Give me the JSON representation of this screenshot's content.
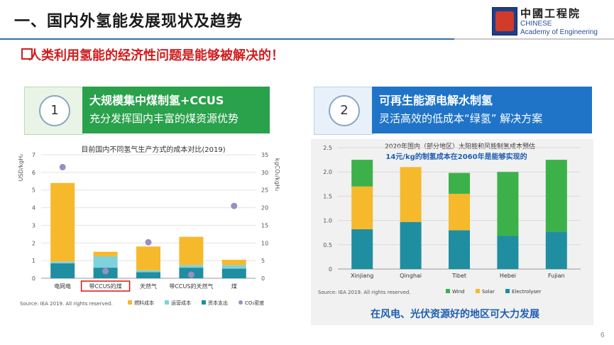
{
  "slide": {
    "title": "一、国内外氢能发展现状及趋势",
    "subtitle": "人类利用氢能的经济性问题是能够被解决的！",
    "page_number": "6"
  },
  "logo": {
    "cn": "中國工程院",
    "en_line1": "CHINESE",
    "en_line2": "Academy of Engineering"
  },
  "panel1": {
    "number": "1",
    "heading": "大规模集中煤制氢+CCUS",
    "subheading": "充分发挥国内丰富的煤资源优势"
  },
  "panel2": {
    "number": "2",
    "heading": "可再生能源电解水制氢",
    "subheading": "灵活高效的低成本“绿氢” 解决方案"
  },
  "caption": "在风电、光伏资源好的地区可大力发展",
  "chart_data": [
    {
      "type": "bar",
      "stacked": true,
      "title": "目前国内不同氢气生产方式的成本对比(2019)",
      "ylabel": "USD/kgH₂",
      "y2label": "kgCO₂/kgH₂",
      "ylim": [
        0,
        7
      ],
      "y2lim": [
        0,
        35
      ],
      "yticks": [
        "0",
        "1",
        "2",
        "3",
        "4",
        "5",
        "6",
        "7"
      ],
      "y2ticks": [
        "0",
        "5",
        "10",
        "15",
        "20",
        "25",
        "30",
        "35"
      ],
      "categories": [
        "电网电",
        "带CCUS的煤",
        "天然气",
        "带CCUS的天然气",
        "煤"
      ],
      "highlighted_category": "带CCUS的煤",
      "series": [
        {
          "name": "资本支出",
          "color": "#1f8ea0",
          "values": [
            0.85,
            0.6,
            0.35,
            0.6,
            0.55
          ]
        },
        {
          "name": "运营成本",
          "color": "#7fd1de",
          "values": [
            0.1,
            0.65,
            0.1,
            0.15,
            0.2
          ]
        },
        {
          "name": "燃料成本",
          "color": "#f6b92b",
          "values": [
            4.45,
            0.25,
            1.35,
            1.6,
            0.3
          ]
        }
      ],
      "scatter": {
        "name": "CO₂密度",
        "color": "#9a8fc0",
        "values": [
          31.5,
          2.0,
          10.2,
          1.0,
          20.5
        ]
      },
      "source": "Source: IEA 2019. All rights reserved."
    },
    {
      "type": "bar",
      "stacked": true,
      "title": "2020年国内（部分地区）太阳能和风能制氢成本预估",
      "annotation": "14元/kg的制氢成本在2060年是能够实现的",
      "ylim": [
        0,
        2.5
      ],
      "yticks": [
        "0",
        "0.5",
        "1.0",
        "1.5",
        "2.0",
        "2.5"
      ],
      "categories": [
        "Xinjiang",
        "Qinghai",
        "Tibet",
        "Hebei",
        "Fujian"
      ],
      "series": [
        {
          "name": "Electrolyser",
          "color": "#1f8ea0",
          "values": [
            0.82,
            0.97,
            0.8,
            0.68,
            0.77
          ]
        },
        {
          "name": "Solar",
          "color": "#f6b92b",
          "values": [
            0.88,
            1.13,
            0.75,
            0,
            0
          ]
        },
        {
          "name": "Wind",
          "color": "#3cb14a",
          "values": [
            0.55,
            0,
            0.43,
            1.32,
            1.48
          ]
        }
      ],
      "legend_order": [
        "Wind",
        "Solar",
        "Electrolyser"
      ],
      "source": "Source: IEA 2019. All rights reserved."
    }
  ]
}
